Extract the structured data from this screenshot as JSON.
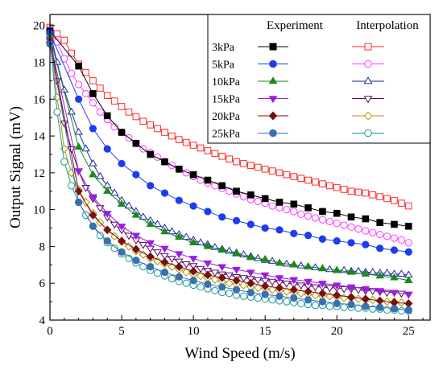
{
  "chart_data": {
    "type": "line",
    "title": "",
    "xlabel": "Wind Speed  (m/s)",
    "ylabel": "Output Signal  (mV)",
    "xlim": [
      0,
      26.5
    ],
    "ylim": [
      4,
      20.6
    ],
    "xticks": [
      0,
      5,
      10,
      15,
      20,
      25
    ],
    "yticks": [
      4,
      6,
      8,
      10,
      12,
      14,
      16,
      18,
      20
    ],
    "grid": false,
    "legend": {
      "placement": "top-right",
      "header_left": "Experiment",
      "header_right": "Interpolation"
    },
    "series_labels": [
      "3kPa",
      "5kPa",
      "10kPa",
      "15kPa",
      "20kPa",
      "25kPa"
    ],
    "experiment_x": [
      0,
      2,
      3,
      4,
      5,
      6,
      7,
      8,
      9,
      10,
      11,
      12,
      13,
      14,
      15,
      16,
      17,
      18,
      19,
      20,
      21,
      22,
      23,
      24,
      25
    ],
    "interpolation_x": [
      0,
      0.5,
      1,
      1.5,
      2,
      2.5,
      3,
      3.5,
      4,
      4.5,
      5,
      5.5,
      6,
      6.5,
      7,
      7.5,
      8,
      8.5,
      9,
      9.5,
      10,
      10.5,
      11,
      11.5,
      12,
      12.5,
      13,
      13.5,
      14,
      14.5,
      15,
      15.5,
      16,
      16.5,
      17,
      17.5,
      18,
      18.5,
      19,
      19.5,
      20,
      20.5,
      21,
      21.5,
      22,
      22.5,
      23,
      23.5,
      24,
      24.5,
      25
    ],
    "series": [
      {
        "name": "3kPa",
        "kind": "experiment",
        "color": "#000000",
        "marker": "square",
        "filled": true,
        "values": [
          19.7,
          17.8,
          16.3,
          15.1,
          14.2,
          13.6,
          13.0,
          12.6,
          12.2,
          11.9,
          11.6,
          11.3,
          11.0,
          10.8,
          10.6,
          10.4,
          10.3,
          10.1,
          9.9,
          9.8,
          9.6,
          9.5,
          9.3,
          9.2,
          9.1
        ]
      },
      {
        "name": "5kPa",
        "kind": "experiment",
        "color": "#1c3cf0",
        "marker": "circle",
        "filled": true,
        "values": [
          19.6,
          16.0,
          14.4,
          13.3,
          12.5,
          11.9,
          11.3,
          10.9,
          10.5,
          10.2,
          9.9,
          9.6,
          9.4,
          9.2,
          9.0,
          8.9,
          8.7,
          8.6,
          8.4,
          8.3,
          8.2,
          8.1,
          7.9,
          7.8,
          7.7
        ]
      },
      {
        "name": "10kPa",
        "kind": "experiment",
        "color": "#1a8a1a",
        "marker": "triangle-up",
        "filled": true,
        "values": [
          19.4,
          13.4,
          11.9,
          11.0,
          10.3,
          9.7,
          9.2,
          8.8,
          8.5,
          8.2,
          8.0,
          7.8,
          7.6,
          7.4,
          7.3,
          7.1,
          7.0,
          6.9,
          6.8,
          6.7,
          6.6,
          6.5,
          6.4,
          6.3,
          6.15
        ]
      },
      {
        "name": "15kPa",
        "kind": "experiment",
        "color": "#9a1ee0",
        "marker": "triangle-down",
        "filled": true,
        "values": [
          19.2,
          12.1,
          10.7,
          9.8,
          9.1,
          8.6,
          8.2,
          7.9,
          7.6,
          7.35,
          7.1,
          6.9,
          6.75,
          6.6,
          6.45,
          6.3,
          6.2,
          6.1,
          6.0,
          5.9,
          5.8,
          5.7,
          5.6,
          5.5,
          5.4
        ]
      },
      {
        "name": "20kPa",
        "kind": "experiment",
        "color": "#7a0f0f",
        "marker": "diamond",
        "filled": true,
        "values": [
          19.1,
          11.0,
          9.7,
          8.9,
          8.3,
          7.85,
          7.45,
          7.15,
          6.9,
          6.65,
          6.45,
          6.3,
          6.15,
          6.0,
          5.85,
          5.75,
          5.65,
          5.55,
          5.45,
          5.35,
          5.25,
          5.15,
          5.05,
          4.95,
          4.9
        ]
      },
      {
        "name": "25kPa",
        "kind": "experiment",
        "color": "#3a6fb0",
        "marker": "circle",
        "filled": true,
        "values": [
          19.0,
          10.4,
          9.1,
          8.3,
          7.7,
          7.25,
          6.9,
          6.6,
          6.35,
          6.15,
          5.95,
          5.8,
          5.65,
          5.5,
          5.4,
          5.3,
          5.2,
          5.1,
          5.0,
          4.9,
          4.85,
          4.75,
          4.7,
          4.62,
          4.55
        ]
      },
      {
        "name": "3kPa",
        "kind": "interpolation",
        "color": "#ff2a2a",
        "marker": "square",
        "filled": false,
        "values": [
          19.9,
          19.55,
          19.2,
          18.5,
          17.9,
          17.45,
          17.0,
          16.6,
          16.2,
          15.9,
          15.6,
          15.3,
          15.05,
          14.8,
          14.6,
          14.4,
          14.2,
          14.0,
          13.8,
          13.65,
          13.5,
          13.35,
          13.2,
          13.05,
          12.9,
          12.75,
          12.6,
          12.5,
          12.4,
          12.3,
          12.2,
          12.1,
          12.0,
          11.9,
          11.8,
          11.7,
          11.6,
          11.5,
          11.4,
          11.3,
          11.2,
          11.1,
          11.0,
          10.95,
          10.9,
          10.8,
          10.7,
          10.6,
          10.5,
          10.35,
          10.2
        ]
      },
      {
        "name": "5kPa",
        "kind": "interpolation",
        "color": "#ff3cff",
        "marker": "circle",
        "filled": false,
        "values": [
          19.8,
          19.1,
          18.2,
          17.4,
          16.8,
          16.3,
          15.8,
          15.3,
          14.9,
          14.5,
          14.2,
          13.9,
          13.6,
          13.3,
          13.1,
          12.85,
          12.6,
          12.4,
          12.2,
          12.0,
          11.8,
          11.6,
          11.45,
          11.3,
          11.15,
          11.0,
          10.85,
          10.7,
          10.55,
          10.45,
          10.35,
          10.2,
          10.1,
          10.0,
          9.9,
          9.75,
          9.65,
          9.55,
          9.45,
          9.35,
          9.25,
          9.15,
          9.05,
          8.95,
          8.85,
          8.75,
          8.65,
          8.55,
          8.45,
          8.35,
          8.2
        ]
      },
      {
        "name": "10kPa",
        "kind": "interpolation",
        "color": "#1a2aa0",
        "marker": "triangle-up",
        "filled": false,
        "values": [
          19.7,
          18.0,
          16.5,
          15.3,
          14.2,
          13.3,
          12.5,
          11.8,
          11.3,
          10.9,
          10.5,
          10.2,
          9.9,
          9.6,
          9.4,
          9.2,
          9.0,
          8.8,
          8.65,
          8.5,
          8.35,
          8.2,
          8.1,
          7.95,
          7.85,
          7.75,
          7.65,
          7.55,
          7.45,
          7.35,
          7.25,
          7.2,
          7.1,
          7.05,
          7.0,
          6.95,
          6.9,
          6.85,
          6.8,
          6.75,
          6.7,
          6.7,
          6.65,
          6.65,
          6.6,
          6.6,
          6.55,
          6.55,
          6.5,
          6.5,
          6.45
        ]
      },
      {
        "name": "15kPa",
        "kind": "interpolation",
        "color": "#5a0a6a",
        "marker": "triangle-down",
        "filled": false,
        "values": [
          19.6,
          17.0,
          14.7,
          13.3,
          12.1,
          11.2,
          10.6,
          10.1,
          9.6,
          9.2,
          8.9,
          8.6,
          8.35,
          8.1,
          7.9,
          7.7,
          7.5,
          7.35,
          7.2,
          7.05,
          6.95,
          6.8,
          6.7,
          6.6,
          6.5,
          6.45,
          6.35,
          6.3,
          6.25,
          6.2,
          6.15,
          6.1,
          6.05,
          6.0,
          5.95,
          5.9,
          5.85,
          5.8,
          5.8,
          5.75,
          5.75,
          5.7,
          5.7,
          5.65,
          5.6,
          5.6,
          5.55,
          5.5,
          5.5,
          5.45,
          5.4
        ]
      },
      {
        "name": "20kPa",
        "kind": "interpolation",
        "color": "#b39600",
        "marker": "diamond",
        "filled": false,
        "values": [
          19.4,
          16.1,
          13.3,
          12.0,
          11.1,
          10.4,
          9.8,
          9.3,
          8.9,
          8.55,
          8.25,
          8.0,
          7.75,
          7.55,
          7.35,
          7.2,
          7.05,
          6.9,
          6.75,
          6.6,
          6.5,
          6.4,
          6.3,
          6.2,
          6.1,
          6.0,
          5.95,
          5.9,
          5.8,
          5.75,
          5.7,
          5.65,
          5.6,
          5.55,
          5.5,
          5.45,
          5.4,
          5.35,
          5.3,
          5.3,
          5.25,
          5.2,
          5.2,
          5.15,
          5.1,
          5.1,
          5.05,
          5.0,
          5.0,
          4.95,
          4.9
        ]
      },
      {
        "name": "25kPa",
        "kind": "interpolation",
        "color": "#1a9a9a",
        "marker": "circle",
        "filled": false,
        "values": [
          19.3,
          15.3,
          12.6,
          11.3,
          10.4,
          9.7,
          9.1,
          8.6,
          8.2,
          7.9,
          7.6,
          7.35,
          7.1,
          6.9,
          6.7,
          6.55,
          6.4,
          6.25,
          6.1,
          6.0,
          5.9,
          5.8,
          5.7,
          5.6,
          5.5,
          5.45,
          5.35,
          5.3,
          5.25,
          5.2,
          5.15,
          5.1,
          5.05,
          5.0,
          4.95,
          4.9,
          4.85,
          4.8,
          4.8,
          4.75,
          4.75,
          4.7,
          4.7,
          4.65,
          4.65,
          4.6,
          4.6,
          4.55,
          4.55,
          4.5,
          4.5
        ]
      }
    ]
  }
}
